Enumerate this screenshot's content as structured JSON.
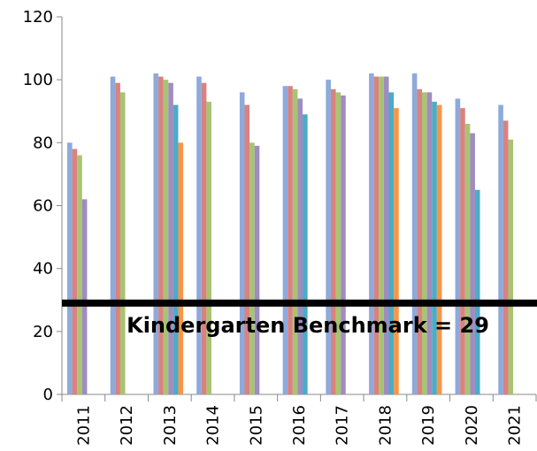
{
  "chart_data": {
    "type": "bar",
    "categories": [
      "2011",
      "2012",
      "2013",
      "2014",
      "2015",
      "2016",
      "2017",
      "2018",
      "2019",
      "2020",
      "2021"
    ],
    "series": [
      {
        "color": "#8eaadb",
        "values": [
          80,
          101,
          102,
          101,
          96,
          98,
          100,
          102,
          102,
          94,
          92
        ]
      },
      {
        "color": "#d9827f",
        "values": [
          78,
          99,
          101,
          99,
          92,
          98,
          97,
          101,
          97,
          91,
          87
        ]
      },
      {
        "color": "#a8c472",
        "values": [
          76,
          96,
          100,
          93,
          80,
          97,
          96,
          101,
          96,
          86,
          81
        ]
      },
      {
        "color": "#9f8cc1",
        "values": [
          62,
          null,
          99,
          null,
          79,
          94,
          95,
          101,
          96,
          83,
          null
        ]
      },
      {
        "color": "#4bacc6",
        "values": [
          null,
          null,
          92,
          null,
          null,
          89,
          null,
          96,
          93,
          65,
          null
        ]
      },
      {
        "color": "#f79646",
        "values": [
          null,
          null,
          80,
          null,
          null,
          null,
          null,
          91,
          92,
          null,
          null
        ]
      }
    ],
    "ylim": [
      0,
      120
    ],
    "yticks": [
      0,
      20,
      40,
      60,
      80,
      100,
      120
    ],
    "benchmark": {
      "value": 29,
      "label": "Kindergarten Benchmark = 29"
    }
  }
}
